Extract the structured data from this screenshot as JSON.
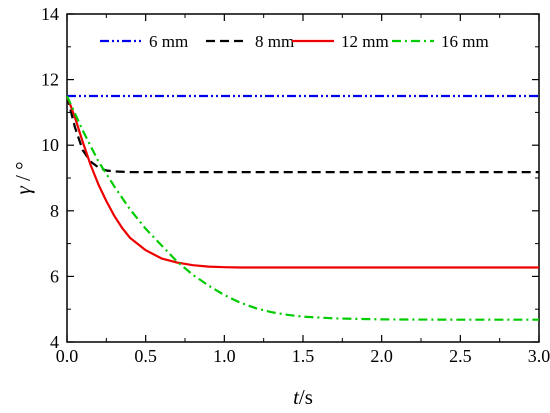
{
  "chart_data": {
    "type": "line",
    "xlabel_var": "t",
    "xlabel_unit": "/s",
    "ylabel_var": "γ",
    "ylabel_unit": " / °",
    "xlim": [
      0,
      3.0
    ],
    "ylim": [
      4,
      14
    ],
    "xticks": [
      "0.0",
      "0.5",
      "1.0",
      "1.5",
      "2.0",
      "2.5",
      "3.0"
    ],
    "yticks": [
      "4",
      "6",
      "8",
      "10",
      "12",
      "14"
    ],
    "grid": false,
    "legend_position": "top",
    "series": [
      {
        "name": "6 mm",
        "color": "#0000ee",
        "dash": "dash-dot-dot",
        "x": [
          0.0,
          3.0
        ],
        "y": [
          11.5,
          11.5
        ]
      },
      {
        "name": "8 mm",
        "color": "#000000",
        "dash": "dash",
        "x": [
          0.0,
          0.05,
          0.1,
          0.15,
          0.2,
          0.25,
          0.3,
          0.4,
          0.5,
          0.7,
          1.0,
          1.5,
          2.0,
          2.5,
          3.0
        ],
        "y": [
          11.5,
          10.55,
          9.85,
          9.5,
          9.32,
          9.23,
          9.2,
          9.18,
          9.18,
          9.18,
          9.18,
          9.18,
          9.18,
          9.18,
          9.18
        ]
      },
      {
        "name": "12 mm",
        "color": "#ee0000",
        "dash": "solid",
        "x": [
          0.0,
          0.05,
          0.1,
          0.15,
          0.2,
          0.25,
          0.3,
          0.35,
          0.4,
          0.5,
          0.6,
          0.7,
          0.8,
          0.9,
          1.0,
          1.1,
          1.5,
          2.0,
          2.5,
          3.0
        ],
        "y": [
          11.5,
          10.85,
          10.1,
          9.4,
          8.8,
          8.3,
          7.85,
          7.48,
          7.18,
          6.8,
          6.55,
          6.42,
          6.34,
          6.3,
          6.28,
          6.27,
          6.27,
          6.27,
          6.27,
          6.27
        ]
      },
      {
        "name": "16 mm",
        "color": "#00cc00",
        "dash": "dash-dot",
        "x": [
          0.0,
          0.1,
          0.2,
          0.3,
          0.4,
          0.5,
          0.6,
          0.7,
          0.8,
          0.9,
          1.0,
          1.1,
          1.2,
          1.3,
          1.4,
          1.5,
          1.7,
          2.0,
          2.5,
          3.0
        ],
        "y": [
          11.5,
          10.45,
          9.5,
          8.75,
          8.05,
          7.45,
          6.95,
          6.45,
          6.05,
          5.72,
          5.43,
          5.2,
          5.03,
          4.91,
          4.83,
          4.77,
          4.72,
          4.69,
          4.68,
          4.68
        ]
      }
    ]
  }
}
